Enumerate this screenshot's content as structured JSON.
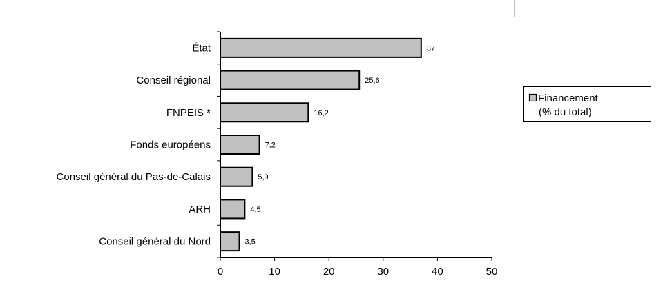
{
  "chart_data": {
    "type": "bar",
    "orientation": "horizontal",
    "title": "",
    "categories": [
      "État",
      "Conseil régional",
      "FNPEIS *",
      "Fonds européens",
      "Conseil général du Pas-de-Calais",
      "ARH",
      "Conseil général du Nord"
    ],
    "values": [
      37,
      25.6,
      16.2,
      7.2,
      5.9,
      4.5,
      3.5
    ],
    "value_labels": [
      "37",
      "25,6",
      "16,2",
      "7,2",
      "5,9",
      "4,5",
      "3,5"
    ],
    "series": [
      {
        "name": "Financement (% du total)",
        "values": [
          37,
          25.6,
          16.2,
          7.2,
          5.9,
          4.5,
          3.5
        ]
      }
    ],
    "xlim": [
      0,
      50
    ],
    "x_ticks": [
      0,
      10,
      20,
      30,
      40,
      50
    ],
    "xlabel": "",
    "ylabel": "",
    "grid": false,
    "legend_position": "right",
    "colors": {
      "bar_fill": "#c0c0c0",
      "bar_stroke": "#000000",
      "frame": "#808080"
    }
  },
  "legend": {
    "line1": "Financement",
    "line2": "(% du total)"
  }
}
